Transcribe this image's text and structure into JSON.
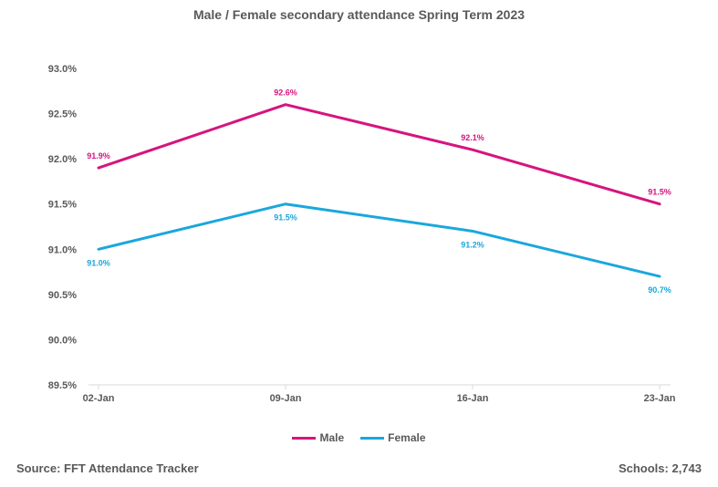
{
  "chart_data": {
    "type": "line",
    "title": "Male / Female secondary attendance Spring Term 2023",
    "categories": [
      "02-Jan",
      "09-Jan",
      "16-Jan",
      "23-Jan"
    ],
    "series": [
      {
        "name": "Male",
        "values": [
          91.9,
          92.6,
          92.1,
          91.5
        ],
        "labels": [
          "91.9%",
          "92.6%",
          "92.1%",
          "91.5%"
        ],
        "color": "#D6147E"
      },
      {
        "name": "Female",
        "values": [
          91.0,
          91.5,
          91.2,
          90.7
        ],
        "labels": [
          "91.0%",
          "91.5%",
          "91.2%",
          "90.7%"
        ],
        "color": "#1AA7DC"
      }
    ],
    "ylim": [
      89.5,
      93.0
    ],
    "yticks": [
      "93.0%",
      "92.5%",
      "92.0%",
      "91.5%",
      "91.0%",
      "90.5%",
      "90.0%",
      "89.5%"
    ],
    "ytick_values": [
      93.0,
      92.5,
      92.0,
      91.5,
      91.0,
      90.5,
      90.0,
      89.5
    ],
    "grid": false,
    "legend_position": "bottom"
  },
  "footer": {
    "source": "Source: FFT Attendance Tracker",
    "schools": "Schools: 2,743"
  }
}
